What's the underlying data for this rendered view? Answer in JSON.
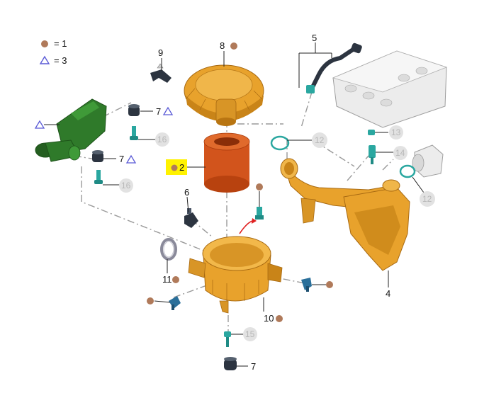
{
  "legend": [
    {
      "symbol": "dot",
      "text": "= 1"
    },
    {
      "symbol": "triangle",
      "text": "= 3"
    }
  ],
  "callouts": {
    "c2": "2",
    "c4": "4",
    "c5": "5",
    "c6": "6",
    "c7a": "7",
    "c7b": "7",
    "c7c": "7",
    "c8": "8",
    "c9": "9",
    "c10": "10",
    "c11": "11",
    "c12a": "12",
    "c12b": "12",
    "c13": "13",
    "c14": "14",
    "c15": "15",
    "c16a": "16",
    "c16b": "16"
  },
  "colors": {
    "orange_part": "#e8a22c",
    "orange_dark": "#a86a12",
    "filter_element": "#d2541c",
    "green_part": "#2f7a2a",
    "teal_part": "#2aa7a0",
    "dark_part": "#2c3440",
    "dot_marker": "#b07a5a",
    "triangle_marker": "#5a5ad6",
    "highlight": "#fff200",
    "muted_label_circle": "#e2e2e2"
  }
}
